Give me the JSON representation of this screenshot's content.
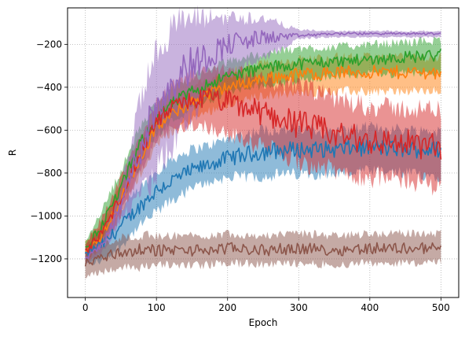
{
  "chart_data": {
    "type": "line",
    "title": "",
    "xlabel": "Epoch",
    "ylabel": "R",
    "xlim": [
      -25,
      525
    ],
    "ylim": [
      -1380,
      -30
    ],
    "xticks": [
      0,
      100,
      200,
      300,
      400,
      500
    ],
    "yticks": [
      -1200,
      -1000,
      -800,
      -600,
      -400,
      -200
    ],
    "xtick_labels": [
      "0",
      "100",
      "200",
      "300",
      "400",
      "500"
    ],
    "ytick_labels": [
      "−1200",
      "−1000",
      "−800",
      "−600",
      "−400",
      "−200"
    ],
    "grid": true,
    "legend": "none",
    "shaded_band": "noisy spread around each mean line",
    "series": [
      {
        "color": "#1f77b4",
        "band_alpha": 0.5,
        "x": [
          0,
          25,
          50,
          75,
          100,
          125,
          150,
          175,
          200,
          250,
          300,
          350,
          400,
          450,
          500
        ],
        "y": [
          -1180,
          -1130,
          -1050,
          -960,
          -880,
          -830,
          -790,
          -760,
          -730,
          -700,
          -690,
          -690,
          -680,
          -690,
          -690
        ],
        "band_lower": [
          -1220,
          -1200,
          -1130,
          -1040,
          -970,
          -910,
          -860,
          -830,
          -810,
          -800,
          -790,
          -790,
          -780,
          -790,
          -800
        ],
        "band_upper": [
          -1150,
          -1070,
          -980,
          -890,
          -800,
          -740,
          -700,
          -680,
          -650,
          -610,
          -610,
          -620,
          -600,
          -610,
          -620
        ]
      },
      {
        "color": "#ff7f0e",
        "band_alpha": 0.5,
        "x": [
          0,
          25,
          50,
          75,
          100,
          125,
          150,
          175,
          200,
          250,
          300,
          350,
          400,
          450,
          500
        ],
        "y": [
          -1170,
          -1080,
          -920,
          -740,
          -590,
          -520,
          -470,
          -430,
          -400,
          -360,
          -340,
          -330,
          -330,
          -330,
          -330
        ],
        "band_lower": [
          -1210,
          -1130,
          -980,
          -810,
          -660,
          -590,
          -540,
          -500,
          -470,
          -430,
          -420,
          -410,
          -410,
          -410,
          -410
        ],
        "band_upper": [
          -1130,
          -1030,
          -860,
          -680,
          -530,
          -460,
          -410,
          -370,
          -340,
          -300,
          -280,
          -270,
          -270,
          -270,
          -270
        ]
      },
      {
        "color": "#2ca02c",
        "band_alpha": 0.5,
        "x": [
          0,
          25,
          50,
          75,
          100,
          125,
          150,
          175,
          200,
          250,
          300,
          350,
          400,
          450,
          500
        ],
        "y": [
          -1160,
          -1030,
          -870,
          -680,
          -540,
          -470,
          -420,
          -380,
          -350,
          -310,
          -290,
          -280,
          -270,
          -260,
          -250
        ],
        "band_lower": [
          -1200,
          -1090,
          -930,
          -760,
          -610,
          -540,
          -490,
          -450,
          -420,
          -380,
          -360,
          -340,
          -330,
          -330,
          -320
        ],
        "band_upper": [
          -1120,
          -970,
          -800,
          -610,
          -480,
          -410,
          -360,
          -320,
          -290,
          -250,
          -230,
          -220,
          -210,
          -200,
          -190
        ]
      },
      {
        "color": "#d62728",
        "band_alpha": 0.5,
        "x": [
          0,
          25,
          50,
          75,
          100,
          125,
          150,
          175,
          200,
          250,
          300,
          350,
          400,
          450,
          500
        ],
        "y": [
          -1170,
          -1070,
          -910,
          -730,
          -560,
          -490,
          -460,
          -450,
          -470,
          -520,
          -570,
          -620,
          -650,
          -660,
          -680
        ],
        "band_lower": [
          -1210,
          -1130,
          -980,
          -800,
          -640,
          -580,
          -560,
          -570,
          -600,
          -660,
          -720,
          -770,
          -800,
          -810,
          -840
        ],
        "band_upper": [
          -1130,
          -1010,
          -840,
          -660,
          -480,
          -400,
          -360,
          -340,
          -350,
          -380,
          -420,
          -470,
          -510,
          -520,
          -530
        ]
      },
      {
        "color": "#9467bd",
        "band_alpha": 0.5,
        "x": [
          0,
          25,
          50,
          75,
          100,
          125,
          150,
          175,
          200,
          250,
          300,
          350,
          400,
          450,
          500
        ],
        "y": [
          -1200,
          -1130,
          -950,
          -700,
          -480,
          -360,
          -290,
          -250,
          -200,
          -170,
          -160,
          -150,
          -150,
          -150,
          -150
        ],
        "band_lower": [
          -1220,
          -1160,
          -1010,
          -900,
          -760,
          -620,
          -500,
          -400,
          -330,
          -260,
          -170,
          -165,
          -165,
          -165,
          -165
        ],
        "band_upper": [
          -1180,
          -1100,
          -880,
          -520,
          -260,
          -140,
          -110,
          -95,
          -90,
          -90,
          -135,
          -140,
          -140,
          -140,
          -140
        ]
      },
      {
        "color": "#8c564b",
        "band_alpha": 0.5,
        "x": [
          0,
          25,
          50,
          75,
          100,
          125,
          150,
          175,
          200,
          250,
          300,
          350,
          400,
          450,
          500
        ],
        "y": [
          -1220,
          -1190,
          -1170,
          -1160,
          -1160,
          -1160,
          -1160,
          -1160,
          -1150,
          -1160,
          -1150,
          -1160,
          -1150,
          -1150,
          -1150
        ],
        "band_lower": [
          -1270,
          -1250,
          -1230,
          -1230,
          -1220,
          -1220,
          -1220,
          -1220,
          -1210,
          -1220,
          -1210,
          -1220,
          -1210,
          -1210,
          -1210
        ],
        "band_upper": [
          -1180,
          -1140,
          -1110,
          -1100,
          -1100,
          -1100,
          -1100,
          -1100,
          -1090,
          -1100,
          -1090,
          -1100,
          -1090,
          -1090,
          -1090
        ]
      }
    ]
  }
}
